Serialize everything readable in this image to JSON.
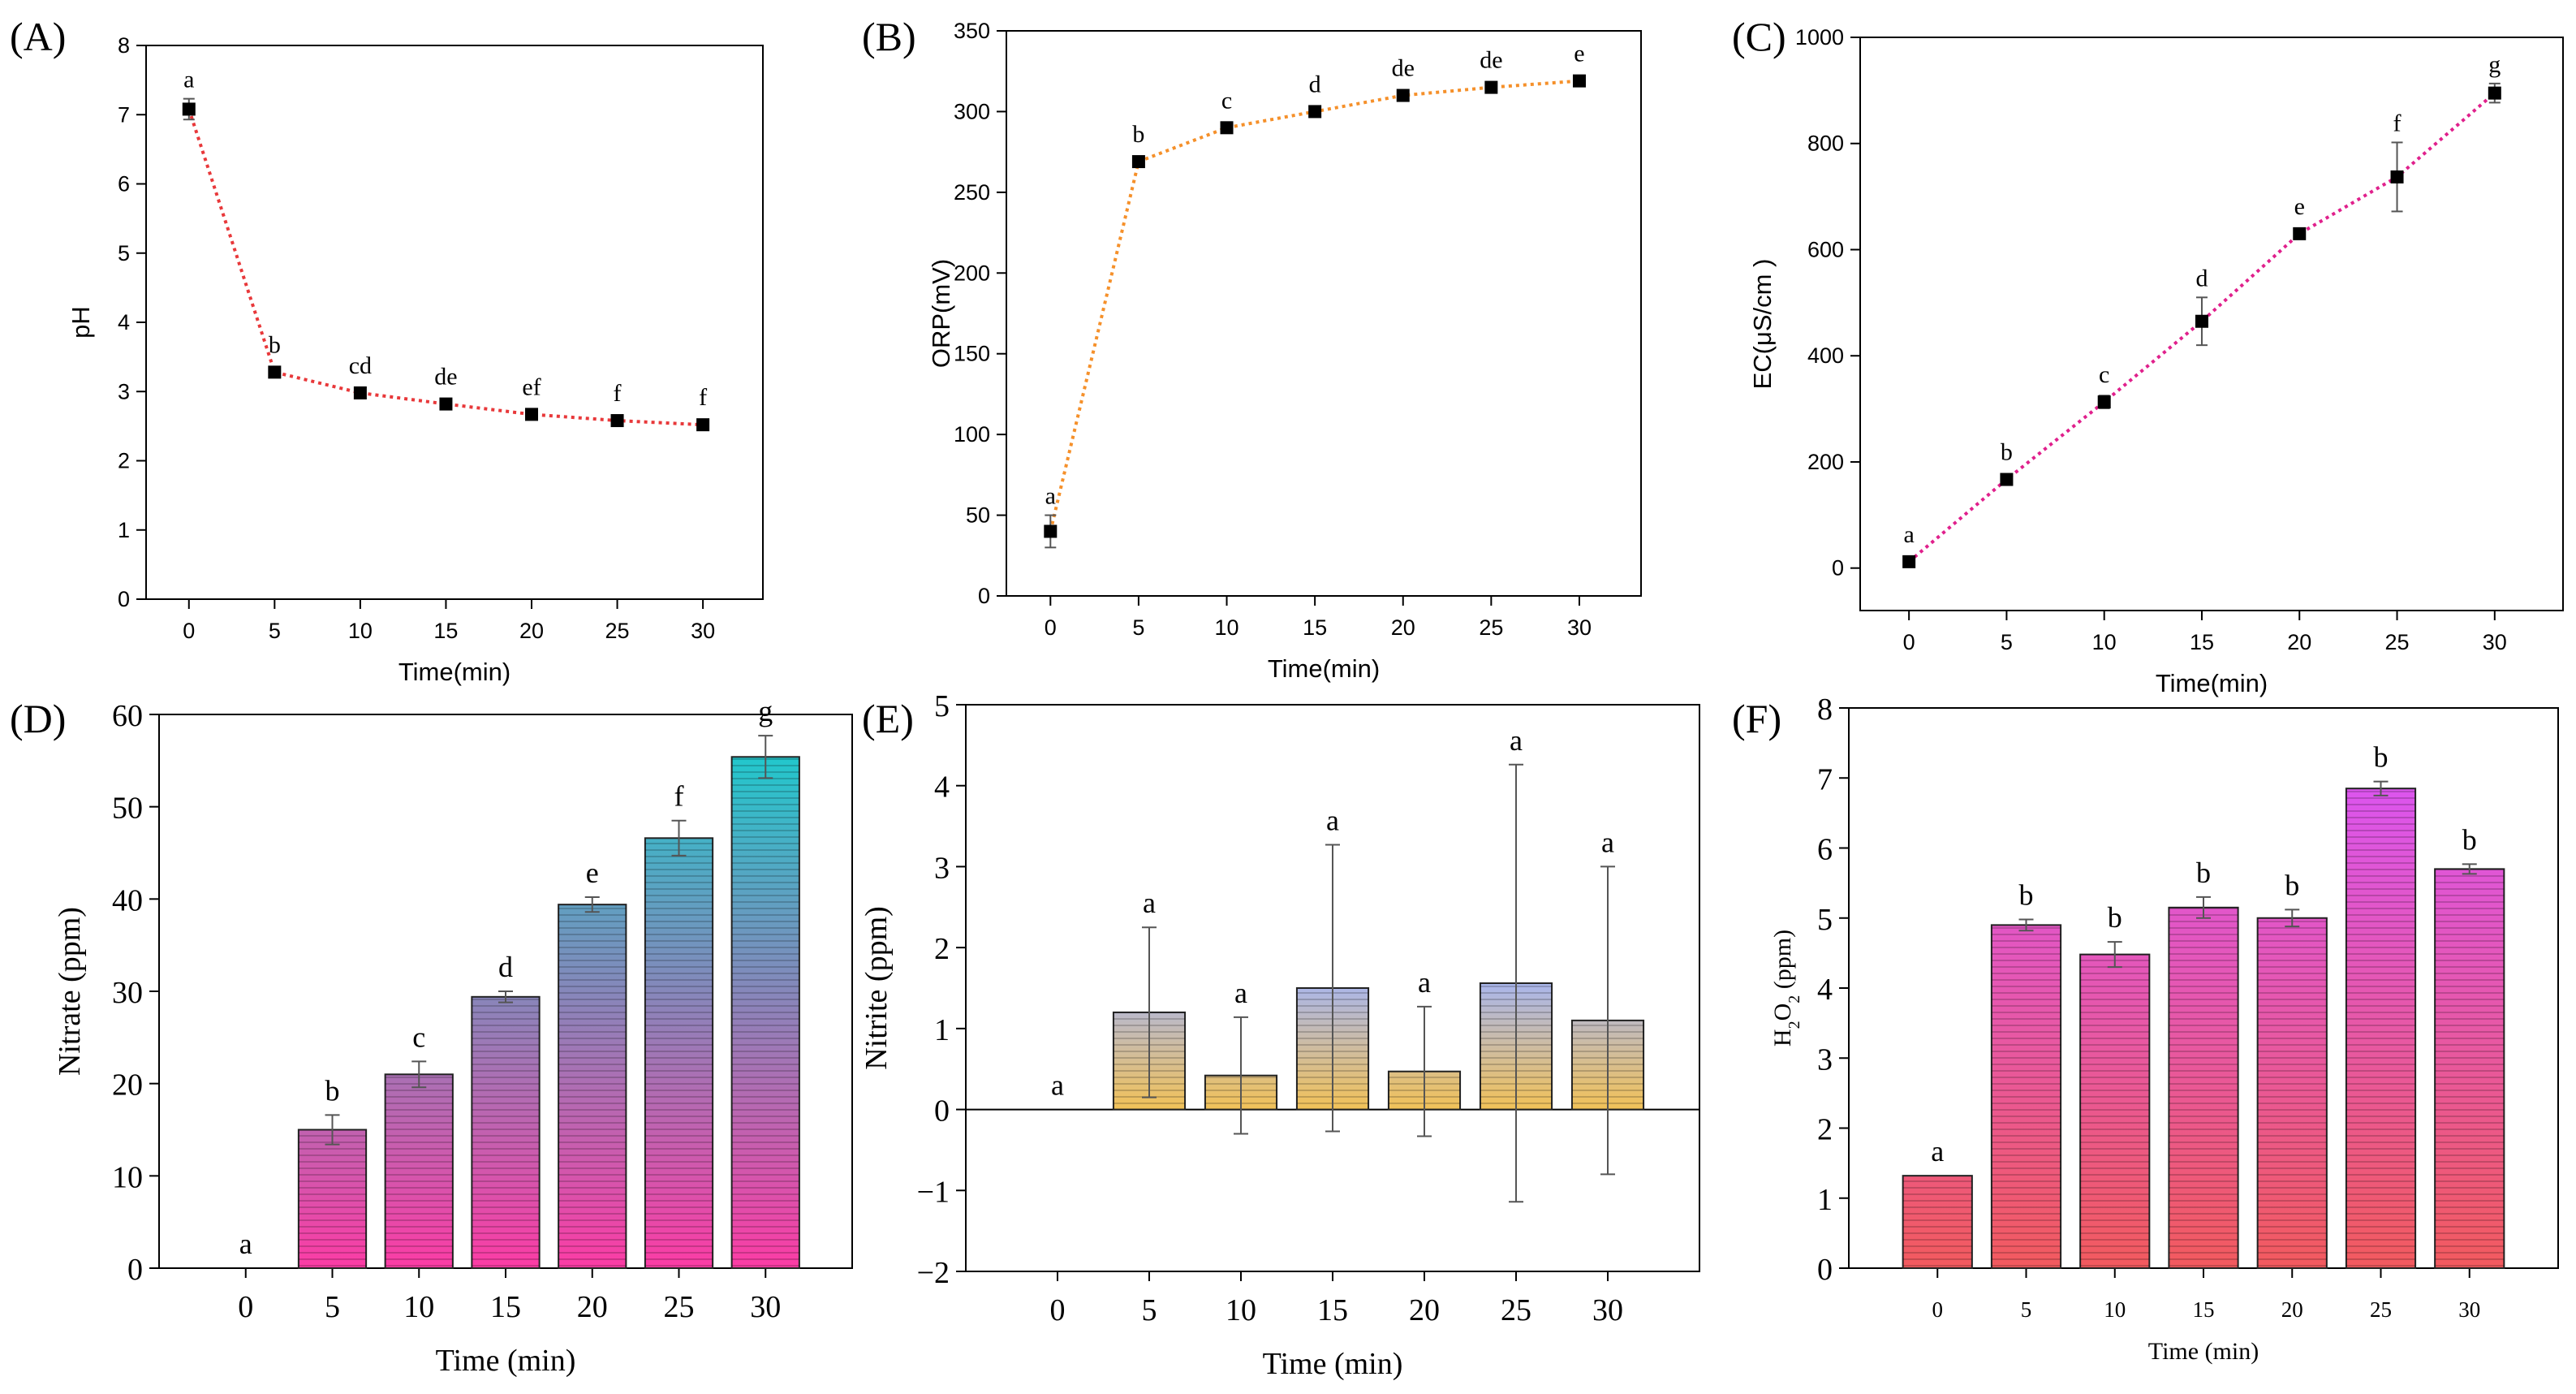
{
  "figure": {
    "panels": [
      "A",
      "B",
      "C",
      "D",
      "E",
      "F"
    ]
  },
  "chart_data": [
    {
      "id": "A",
      "panel_label": "(A)",
      "type": "line",
      "style": "sans",
      "title": "",
      "xlabel": "Time(min)",
      "ylabel": "pH",
      "x": [
        0,
        5,
        10,
        15,
        20,
        25,
        30
      ],
      "x_tick_labels": [
        "0",
        "5",
        "10",
        "15",
        "20",
        "25",
        "30"
      ],
      "y_ticks": [
        0,
        1,
        2,
        3,
        4,
        5,
        6,
        7,
        8
      ],
      "ylim": [
        0,
        8
      ],
      "values": [
        7.08,
        3.28,
        2.98,
        2.82,
        2.67,
        2.58,
        2.52
      ],
      "errors": [
        0.15,
        0.05,
        0.04,
        0.04,
        0.04,
        0.04,
        0.04
      ],
      "letters": [
        "a",
        "b",
        "cd",
        "de",
        "ef",
        "f",
        "f"
      ],
      "line_color": "#e8383a"
    },
    {
      "id": "B",
      "panel_label": "(B)",
      "type": "line",
      "style": "sans",
      "title": "",
      "xlabel": "Time(min)",
      "ylabel": "ORP(mV)",
      "x": [
        0,
        5,
        10,
        15,
        20,
        25,
        30
      ],
      "x_tick_labels": [
        "0",
        "5",
        "10",
        "15",
        "20",
        "25",
        "30"
      ],
      "y_ticks": [
        0,
        50,
        100,
        150,
        200,
        250,
        300,
        350
      ],
      "ylim": [
        0,
        350
      ],
      "values": [
        40,
        269,
        290,
        300,
        310,
        315,
        319
      ],
      "errors": [
        10,
        3,
        3,
        3,
        3,
        3,
        3
      ],
      "letters": [
        "a",
        "b",
        "c",
        "d",
        "de",
        "de",
        "e"
      ],
      "line_color": "#f5902a"
    },
    {
      "id": "C",
      "panel_label": "(C)",
      "type": "line",
      "style": "sans",
      "title": "",
      "xlabel": "Time(min)",
      "ylabel": "EC(μS/cm )",
      "x": [
        0,
        5,
        10,
        15,
        20,
        25,
        30
      ],
      "x_tick_labels": [
        "0",
        "5",
        "10",
        "15",
        "20",
        "25",
        "30"
      ],
      "y_ticks": [
        0,
        200,
        400,
        600,
        800,
        1000
      ],
      "ylim": [
        -80,
        1000
      ],
      "values": [
        12,
        167,
        313,
        465,
        630,
        737,
        895
      ],
      "errors": [
        8,
        8,
        12,
        45,
        10,
        65,
        18
      ],
      "letters": [
        "a",
        "b",
        "c",
        "d",
        "e",
        "f",
        "g"
      ],
      "line_color": "#e0208c"
    },
    {
      "id": "D",
      "panel_label": "(D)",
      "type": "bar",
      "style": "serif",
      "title": "",
      "xlabel": "Time (min)",
      "ylabel": "Nitrate (ppm)",
      "categories": [
        "0",
        "5",
        "10",
        "15",
        "20",
        "25",
        "30"
      ],
      "y_ticks": [
        0,
        10,
        20,
        30,
        40,
        50,
        60
      ],
      "ylim": [
        0,
        60
      ],
      "values": [
        0,
        15,
        21,
        29.4,
        39.4,
        46.6,
        55.4
      ],
      "errors": [
        0,
        1.6,
        1.4,
        0.6,
        0.8,
        1.9,
        2.3
      ],
      "letters": [
        "a",
        "b",
        "c",
        "d",
        "e",
        "f",
        "g"
      ],
      "bar_top_color": "#22c7cc",
      "bar_bottom_color": "#fc3ca5"
    },
    {
      "id": "E",
      "panel_label": "(E)",
      "type": "bar",
      "style": "serif",
      "title": "",
      "xlabel": "Time (min)",
      "ylabel": "Nitrite (ppm)",
      "categories": [
        "0",
        "5",
        "10",
        "15",
        "20",
        "25",
        "30"
      ],
      "y_ticks": [
        -2,
        -1,
        0,
        1,
        2,
        3,
        4,
        5
      ],
      "ylim": [
        -2,
        5
      ],
      "values": [
        0,
        1.2,
        0.42,
        1.5,
        0.47,
        1.56,
        1.1
      ],
      "errors": [
        0,
        1.05,
        0.72,
        1.77,
        0.8,
        2.7,
        1.9
      ],
      "letters": [
        "a",
        "a",
        "a",
        "a",
        "a",
        "a",
        "a"
      ],
      "bar_top_color": "#a9b6ec",
      "bar_bottom_color": "#f2c258"
    },
    {
      "id": "F",
      "panel_label": "(F)",
      "type": "bar",
      "style": "serif",
      "title": "",
      "xlabel": "Time (min)",
      "ylabel": "H2O2 (ppm)",
      "ylabel_parts": {
        "base": "H",
        "sub1": "2",
        "mid": "O",
        "sub2": "2",
        "unit": " (ppm)"
      },
      "categories": [
        "0",
        "5",
        "10",
        "15",
        "20",
        "25",
        "30"
      ],
      "y_ticks": [
        0,
        1,
        2,
        3,
        4,
        5,
        6,
        7,
        8
      ],
      "ylim": [
        0,
        8
      ],
      "values": [
        1.32,
        4.9,
        4.48,
        5.15,
        5.0,
        6.85,
        5.7
      ],
      "errors": [
        0,
        0.08,
        0.18,
        0.15,
        0.12,
        0.1,
        0.07
      ],
      "letters": [
        "a",
        "b",
        "b",
        "b",
        "b",
        "b",
        "b"
      ],
      "bar_top_color": "#dc55ee",
      "bar_bottom_color": "#f25a5e"
    }
  ]
}
